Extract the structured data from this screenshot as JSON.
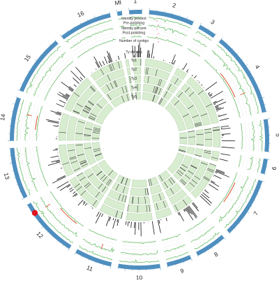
{
  "chromosomes": [
    {
      "label": "Mt",
      "size": 0.085,
      "color": "#4f8fbf"
    },
    {
      "label": "1",
      "size": 0.23,
      "color": "#4f8fbf"
    },
    {
      "label": "2",
      "size": 0.81,
      "color": "#4f8fbf"
    },
    {
      "label": "3",
      "size": 0.32,
      "color": "#4f8fbf"
    },
    {
      "label": "4",
      "size": 1.53,
      "color": "#4f8fbf"
    },
    {
      "label": "5",
      "size": 0.58,
      "color": "#4f8fbf"
    },
    {
      "label": "6",
      "size": 0.27,
      "color": "#4f8fbf"
    },
    {
      "label": "7",
      "size": 1.09,
      "color": "#4f8fbf"
    },
    {
      "label": "8",
      "size": 0.56,
      "color": "#4f8fbf"
    },
    {
      "label": "9",
      "size": 0.44,
      "color": "#4f8fbf"
    },
    {
      "label": "10",
      "size": 0.75,
      "color": "#4f8fbf"
    },
    {
      "label": "11",
      "size": 0.67,
      "color": "#4f8fbf"
    },
    {
      "label": "12",
      "size": 1.08,
      "color": "#4f8fbf"
    },
    {
      "label": "13",
      "size": 0.92,
      "color": "#4f8fbf"
    },
    {
      "label": "14",
      "size": 0.78,
      "color": "#4f8fbf"
    },
    {
      "label": "15",
      "size": 1.09,
      "color": "#4f8fbf"
    },
    {
      "label": "16",
      "size": 0.95,
      "color": "#4f8fbf"
    }
  ],
  "tracks": [
    {
      "label": "Identity percent\nPre-polishing",
      "type": "line",
      "color": "#5cb85c"
    },
    {
      "label": "Identity percent\nPost-polishing",
      "type": "line",
      "color": "#5cb85c"
    },
    {
      "label": "Number of contigs",
      "type": "line",
      "color": "#5cb85c"
    },
    {
      "label": "Ty density",
      "type": "histogram",
      "color": "#111111"
    },
    {
      "label": "Ty1",
      "type": "box",
      "color": "#d8ecd0"
    },
    {
      "label": "Ty2",
      "type": "box",
      "color": "#d8ecd0"
    },
    {
      "label": "Ty3",
      "type": "box",
      "color": "#d8ecd0"
    },
    {
      "label": "Ty4",
      "type": "box",
      "color": "#d8ecd0"
    },
    {
      "label": "Ty5",
      "type": "box",
      "color": "#d8ecd0"
    }
  ],
  "highlight_color": "#e05a3a",
  "marker_color": "#e0141e",
  "marker_chromosome": "12"
}
